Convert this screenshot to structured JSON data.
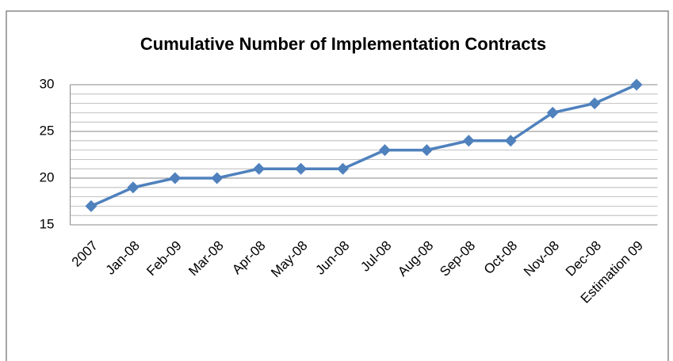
{
  "chart_data": {
    "type": "line",
    "title": "Cumulative Number of Implementation Contracts",
    "categories": [
      "2007",
      "Jan-08",
      "Feb-09",
      "Mar-08",
      "Apr-08",
      "May-08",
      "Jun-08",
      "Jul-08",
      "Aug-08",
      "Sep-08",
      "Oct-08",
      "Nov-08",
      "Dec-08",
      "Estimation 09"
    ],
    "values": [
      17,
      19,
      20,
      20,
      21,
      21,
      21,
      23,
      23,
      24,
      24,
      27,
      28,
      30
    ],
    "color": "#4f81bd",
    "ylim": [
      15,
      30
    ],
    "yticks": [
      15,
      20,
      25,
      30
    ],
    "grid": true,
    "minor_yticks": [
      16,
      17,
      18,
      19,
      21,
      22,
      23,
      24,
      26,
      27,
      28,
      29
    ]
  }
}
